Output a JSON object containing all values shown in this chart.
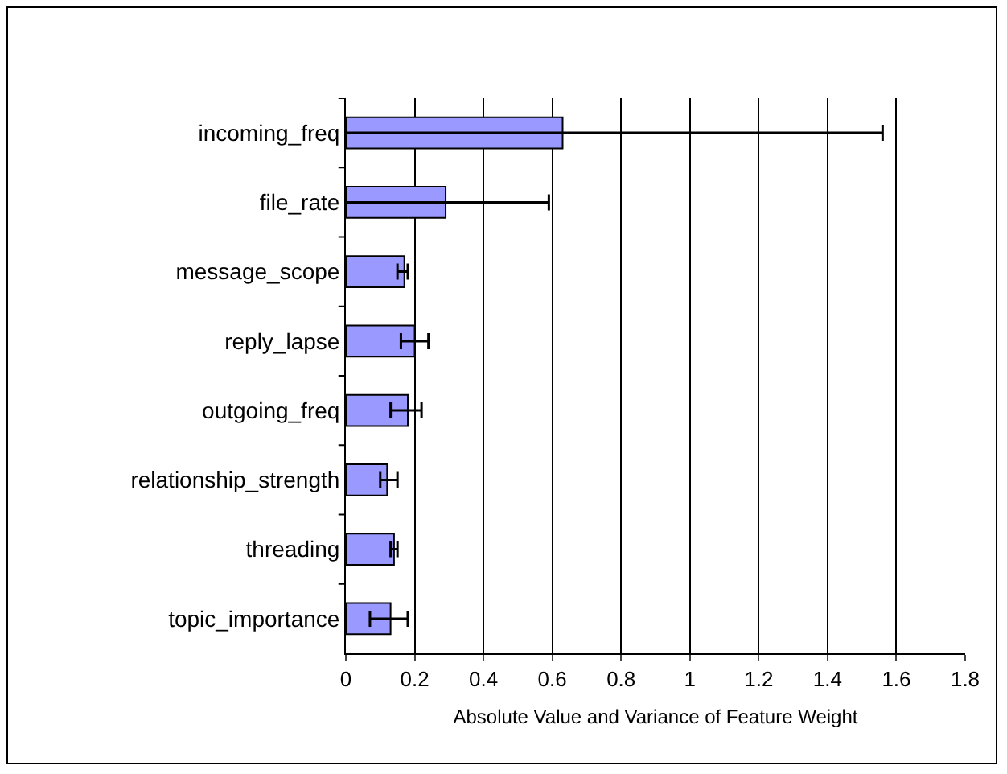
{
  "chart_data": {
    "type": "bar",
    "orientation": "horizontal",
    "xlabel": "Absolute Value and Variance of Feature Weight",
    "categories": [
      "incoming_freq",
      "file_rate",
      "message_scope",
      "reply_lapse",
      "outgoing_freq",
      "relationship_strength",
      "threading",
      "topic_importance"
    ],
    "values": [
      0.63,
      0.29,
      0.17,
      0.2,
      0.18,
      0.12,
      0.14,
      0.13
    ],
    "errors": [
      [
        0,
        1.56
      ],
      [
        0,
        0.59
      ],
      [
        0.15,
        0.18
      ],
      [
        0.16,
        0.24
      ],
      [
        0.13,
        0.22
      ],
      [
        0.1,
        0.15
      ],
      [
        0.13,
        0.15
      ],
      [
        0.07,
        0.18
      ]
    ],
    "color": "#9999ff",
    "xlim": [
      0,
      1.8
    ],
    "xticks": [
      0,
      0.2,
      0.4,
      0.6,
      0.8,
      1,
      1.2,
      1.4,
      1.6,
      1.8
    ],
    "grid": "x"
  }
}
